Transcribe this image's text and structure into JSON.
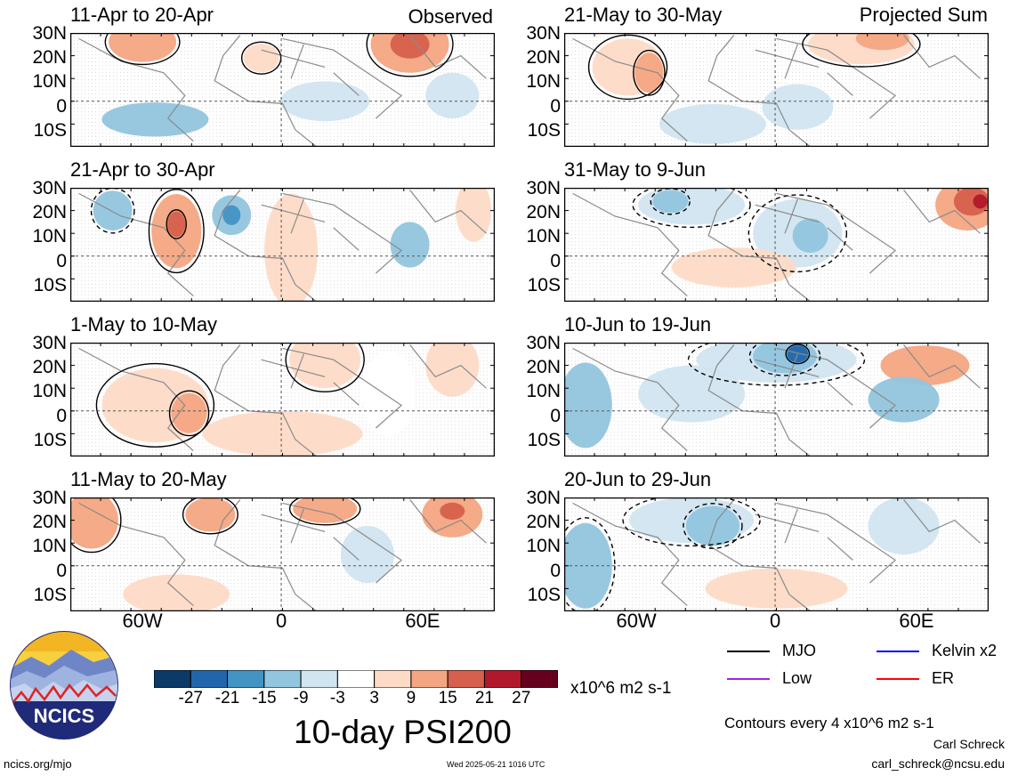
{
  "observed_label": "Observed",
  "projected_label": "Projected Sum",
  "lat_labels": [
    "30N",
    "20N",
    "10N",
    "0",
    "10S"
  ],
  "lon_labels": [
    "60W",
    "0",
    "60E"
  ],
  "panels": {
    "left": [
      {
        "title": "11-Apr to 20-Apr"
      },
      {
        "title": "21-Apr to 30-Apr"
      },
      {
        "title": "1-May to 10-May"
      },
      {
        "title": "11-May to 20-May"
      }
    ],
    "right": [
      {
        "title": "21-May to 30-May"
      },
      {
        "title": "31-May to 9-Jun"
      },
      {
        "title": "10-Jun to 19-Jun"
      },
      {
        "title": "20-Jun to 29-Jun"
      }
    ]
  },
  "colorbar": {
    "colors": [
      "#0b3a66",
      "#2166ac",
      "#4393c3",
      "#92c5de",
      "#d1e5f0",
      "#ffffff",
      "#fddbc7",
      "#f4a582",
      "#d6604d",
      "#b2182b",
      "#67001f"
    ],
    "ticks": [
      "-27",
      "-21",
      "-15",
      "-9",
      "-3",
      "3",
      "9",
      "15",
      "21",
      "27"
    ],
    "units": "x10^6 m2 s-1"
  },
  "title": "10-day PSI200",
  "legend": [
    {
      "label": "MJO",
      "color": "#000000"
    },
    {
      "label": "Kelvin x2",
      "color": "#0000ff"
    },
    {
      "label": "Low",
      "color": "#a020f0"
    },
    {
      "label": "ER",
      "color": "#ff0000"
    }
  ],
  "contours_note": "Contours every 4 x10^6 m2 s-1",
  "author": "Carl Schreck",
  "email": "carl_schreck@ncsu.edu",
  "url": "ncics.org/mjo",
  "timestamp": "Wed 2025-05-21 1016 UTC",
  "logo_text": "NCICS"
}
